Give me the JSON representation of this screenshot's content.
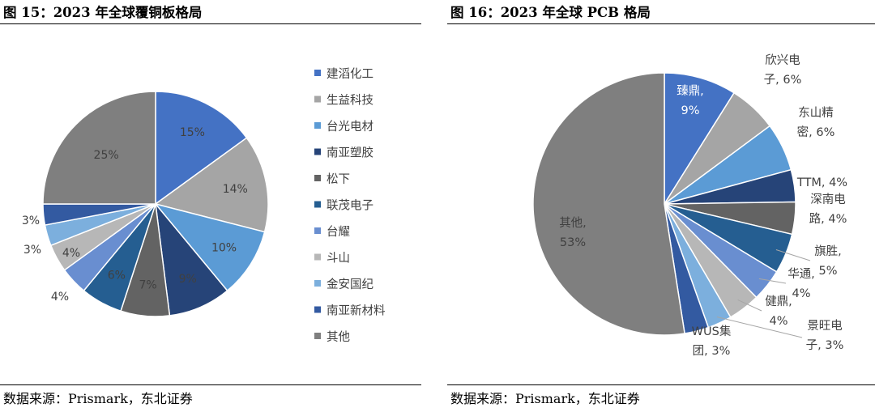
{
  "chart_data": [
    {
      "type": "pie",
      "title": "图  15：2023 年全球覆铜板格局",
      "source": "数据来源：Prismark，东北证券",
      "legend_position": "right",
      "slices": [
        {
          "name": "建滔化工",
          "value": 15,
          "label": "15%",
          "color": "#4472c4"
        },
        {
          "name": "生益科技",
          "value": 14,
          "label": "14%",
          "color": "#a5a5a5"
        },
        {
          "name": "台光电材",
          "value": 10,
          "label": "10%",
          "color": "#5b9bd5"
        },
        {
          "name": "南亚塑胶",
          "value": 9,
          "label": "9%",
          "color": "#264478"
        },
        {
          "name": "松下",
          "value": 7,
          "label": "7%",
          "color": "#636363"
        },
        {
          "name": "联茂电子",
          "value": 6,
          "label": "6%",
          "color": "#255e91"
        },
        {
          "name": "台耀",
          "value": 4,
          "label": "4%",
          "color": "#698ed0"
        },
        {
          "name": "斗山",
          "value": 4,
          "label": "4%",
          "color": "#b7b7b7"
        },
        {
          "name": "金安国纪",
          "value": 3,
          "label": "3%",
          "color": "#7cafdd"
        },
        {
          "name": "南亚新材料",
          "value": 3,
          "label": "3%",
          "color": "#335aa1"
        },
        {
          "name": "其他",
          "value": 25,
          "label": "25%",
          "color": "#7f7f7f"
        }
      ]
    },
    {
      "type": "pie",
      "title": "图  16：2023 年全球 PCB 格局",
      "source": "数据来源：Prismark，东北证券",
      "slices": [
        {
          "name": "臻鼎",
          "value": 9,
          "label_lines": [
            "臻鼎,",
            "9%"
          ],
          "color": "#4472c4"
        },
        {
          "name": "欣兴电子",
          "value": 6,
          "label_lines": [
            "欣兴电",
            "子, 6%"
          ],
          "color": "#a5a5a5"
        },
        {
          "name": "东山精密",
          "value": 6,
          "label_lines": [
            "东山精",
            "密, 6%"
          ],
          "color": "#5b9bd5"
        },
        {
          "name": "TTM",
          "value": 4,
          "label_lines": [
            "TTM, 4%"
          ],
          "color": "#264478"
        },
        {
          "name": "深南电路",
          "value": 4,
          "label_lines": [
            "深南电",
            "路, 4%"
          ],
          "color": "#636363"
        },
        {
          "name": "旗胜",
          "value": 5,
          "label_lines": [
            "旗胜,",
            "5%"
          ],
          "color": "#255e91"
        },
        {
          "name": "华通",
          "value": 4,
          "label_lines": [
            "华通,",
            "4%"
          ],
          "color": "#698ed0"
        },
        {
          "name": "健鼎",
          "value": 4,
          "label_lines": [
            "健鼎,",
            "4%"
          ],
          "color": "#b7b7b7"
        },
        {
          "name": "景旺电子",
          "value": 3,
          "label_lines": [
            "景旺电",
            "子, 3%"
          ],
          "color": "#7cafdd"
        },
        {
          "name": "WUS集团",
          "value": 3,
          "label_lines": [
            "WUS集",
            "团, 3%"
          ],
          "color": "#335aa1"
        },
        {
          "name": "其他",
          "value": 53,
          "label_lines": [
            "其他,",
            "53%"
          ],
          "color": "#7f7f7f"
        }
      ]
    }
  ]
}
